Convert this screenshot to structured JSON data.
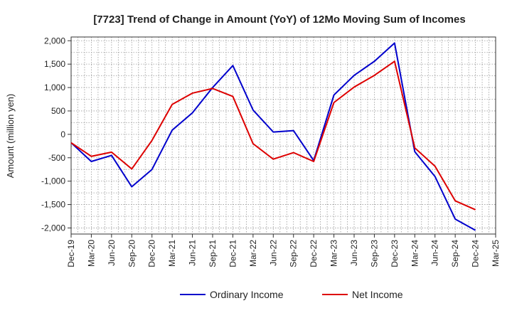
{
  "chart_data": {
    "type": "line",
    "title": "[7723]  Trend of Change in Amount (YoY) of 12Mo Moving Sum of Incomes",
    "xlabel": "",
    "ylabel": "Amount (million yen)",
    "x_ticks": [
      "Dec-19",
      "Mar-20",
      "Jun-20",
      "Sep-20",
      "Dec-20",
      "Mar-21",
      "Jun-21",
      "Sep-21",
      "Dec-21",
      "Mar-22",
      "Jun-22",
      "Sep-22",
      "Dec-22",
      "Mar-23",
      "Jun-23",
      "Sep-23",
      "Dec-23",
      "Mar-24",
      "Jun-24",
      "Sep-24",
      "Dec-24",
      "Mar-25"
    ],
    "y_ticks": [
      2000,
      1500,
      1000,
      500,
      0,
      -500,
      -1000,
      -1500,
      -2000
    ],
    "y_tick_labels": [
      "2,000",
      "1,500",
      "1,000",
      "500",
      "0",
      "-500",
      "-1,000",
      "-1,500",
      "-2,000"
    ],
    "ylim": [
      -2130,
      2080
    ],
    "grid": true,
    "legend_position": "bottom-center",
    "series": [
      {
        "name": "Ordinary Income",
        "color": "#0000cc",
        "values": [
          -180,
          -580,
          -450,
          -1120,
          -750,
          90,
          460,
          1000,
          1470,
          520,
          50,
          80,
          -560,
          840,
          1260,
          1560,
          1950,
          -370,
          -900,
          -1810,
          -2050
        ]
      },
      {
        "name": "Net Income",
        "color": "#dd0000",
        "values": [
          -180,
          -470,
          -380,
          -740,
          -130,
          640,
          880,
          980,
          810,
          -200,
          -530,
          -390,
          -580,
          680,
          1010,
          1260,
          1560,
          -290,
          -680,
          -1420,
          -1610
        ]
      }
    ]
  }
}
